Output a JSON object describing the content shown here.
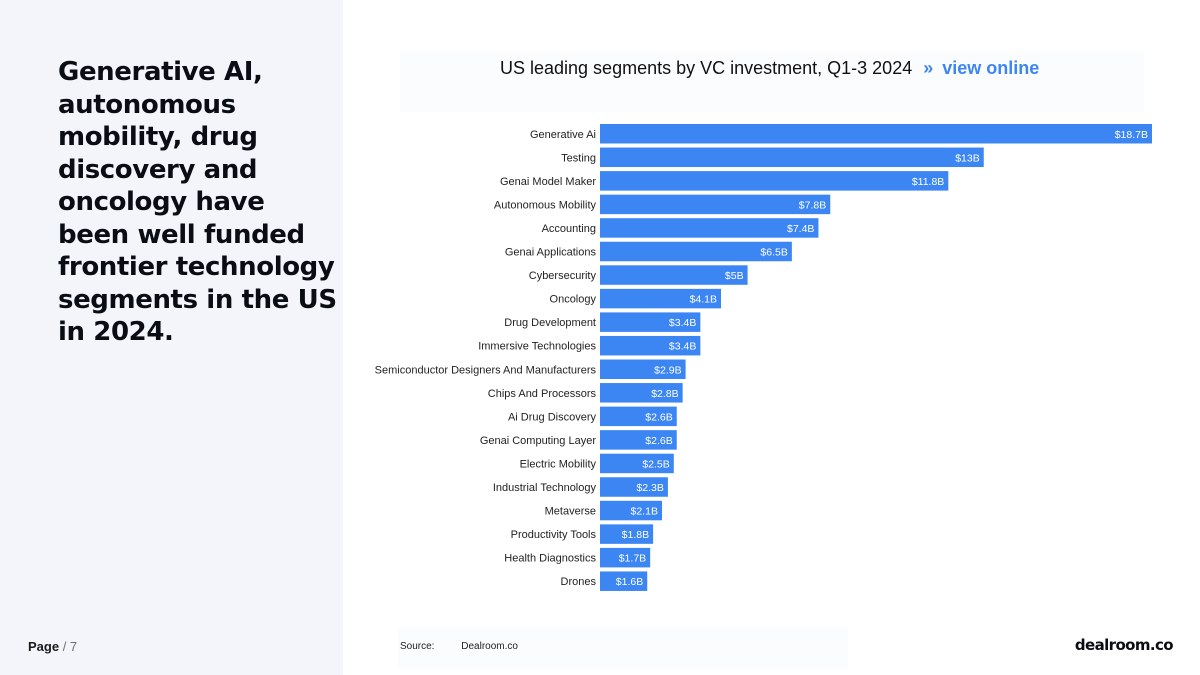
{
  "headline": "Generative AI, autonomous mobility, drug discovery and oncology have been well funded frontier technology segments in the US in 2024.",
  "page": {
    "label": "Page",
    "separator": "/ 7"
  },
  "chart_title": {
    "text": "US leading segments by VC investment, Q1-3 2024",
    "chevron": "»",
    "link_label": "view online"
  },
  "source": {
    "label": "Source:",
    "value": "Dealroom.co"
  },
  "brand": "dealroom.co",
  "colors": {
    "bar": "#3c86f4",
    "link": "#3c86f4",
    "panel": "#f3f5fb"
  },
  "chart_data": {
    "type": "bar",
    "orientation": "horizontal",
    "title": "US leading segments by VC investment, Q1-3 2024",
    "unit": "$B",
    "categories": [
      "Generative Ai",
      "Testing",
      "Genai Model Maker",
      "Autonomous Mobility",
      "Accounting",
      "Genai Applications",
      "Cybersecurity",
      "Oncology",
      "Drug Development",
      "Immersive Technologies",
      "Semiconductor Designers And Manufacturers",
      "Chips And Processors",
      "Ai Drug Discovery",
      "Genai Computing Layer",
      "Electric Mobility",
      "Industrial Technology",
      "Metaverse",
      "Productivity Tools",
      "Health Diagnostics",
      "Drones"
    ],
    "values": [
      18.7,
      13,
      11.8,
      7.8,
      7.4,
      6.5,
      5,
      4.1,
      3.4,
      3.4,
      2.9,
      2.8,
      2.6,
      2.6,
      2.5,
      2.3,
      2.1,
      1.8,
      1.7,
      1.6
    ],
    "value_labels": [
      "$18.7B",
      "$13B",
      "$11.8B",
      "$7.8B",
      "$7.4B",
      "$6.5B",
      "$5B",
      "$4.1B",
      "$3.4B",
      "$3.4B",
      "$2.9B",
      "$2.8B",
      "$2.6B",
      "$2.6B",
      "$2.5B",
      "$2.3B",
      "$2.1B",
      "$1.8B",
      "$1.7B",
      "$1.6B"
    ],
    "grid": false,
    "legend": "none"
  }
}
